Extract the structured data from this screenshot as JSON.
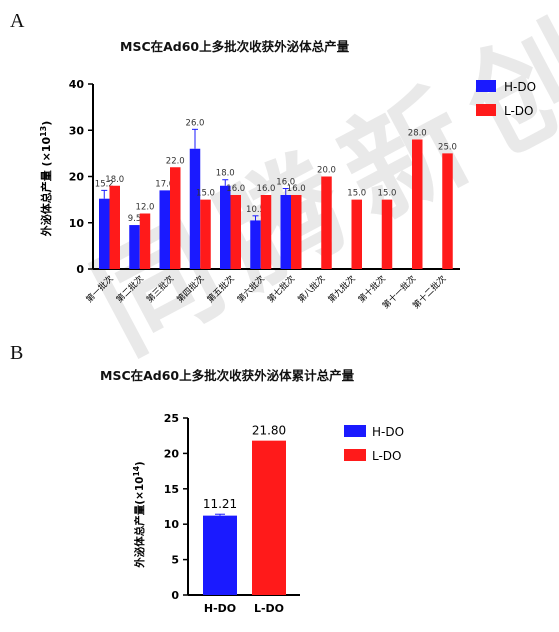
{
  "watermark": "同腾新创",
  "colors": {
    "h_do": "#1a1aff",
    "l_do": "#ff1a1a",
    "axis": "#000000",
    "errorbar_h": "#1a1aff"
  },
  "panelA": {
    "letter": "A",
    "title": "MSC在Ad60上多批次收获外泌体总产量"
  },
  "panelB": {
    "letter": "B",
    "title": "MSC在Ad60上多批次收获外泌体累计总产量"
  },
  "chart_data": [
    {
      "type": "bar",
      "title": "MSC在Ad60上多批次收获外泌体总产量",
      "ylabel": "外泌体总产量 (×10",
      "ylabel_sup": "13",
      "ylabel_close": ")",
      "ylim": [
        0,
        40
      ],
      "yticks": [
        "0",
        "10",
        "20",
        "30",
        "40"
      ],
      "categories": [
        "第一批次",
        "第二批次",
        "第三批次",
        "第四批次",
        "第五批次",
        "第六批次",
        "第七批次",
        "第八批次",
        "第九批次",
        "第十批次",
        "第十一批次",
        "第十二批次"
      ],
      "series": [
        {
          "name": "H-DO",
          "values": [
            15.2,
            9.5,
            17.0,
            26.0,
            18.0,
            10.5,
            16.0,
            null,
            null,
            null,
            null,
            null
          ],
          "labels": [
            "15.2",
            "9.5",
            "17.0",
            "26.0",
            "18.0",
            "10.5",
            "16.0",
            "",
            "",
            "",
            "",
            ""
          ],
          "errors": [
            1.8,
            0,
            0,
            4.2,
            1.3,
            1.0,
            1.4,
            0,
            0,
            0,
            0,
            0
          ]
        },
        {
          "name": "L-DO",
          "values": [
            18.0,
            12.0,
            22.0,
            15.0,
            16.0,
            16.0,
            16.0,
            20.0,
            15.0,
            15.0,
            28.0,
            25.0
          ],
          "labels": [
            "18.0",
            "12.0",
            "22.0",
            "15.0",
            "16.0",
            "16.0",
            "16.0",
            "20.0",
            "15.0",
            "15.0",
            "28.0",
            "25.0"
          ]
        }
      ],
      "legend": "top-right",
      "grid": false
    },
    {
      "type": "bar",
      "title": "MSC在Ad60上多批次收获外泌体累计总产量",
      "ylabel": "外泌体总产量(×10",
      "ylabel_sup": "14",
      "ylabel_close": ")",
      "ylim": [
        0,
        25
      ],
      "yticks": [
        "0",
        "5",
        "10",
        "15",
        "20",
        "25"
      ],
      "categories": [
        "H-DO",
        "L-DO"
      ],
      "values": [
        11.21,
        21.8
      ],
      "labels": [
        "11.21",
        "21.80"
      ],
      "errors": [
        0.2,
        0
      ],
      "legend_entries": [
        "H-DO",
        "L-DO"
      ],
      "legend": "top-right",
      "grid": false
    }
  ]
}
